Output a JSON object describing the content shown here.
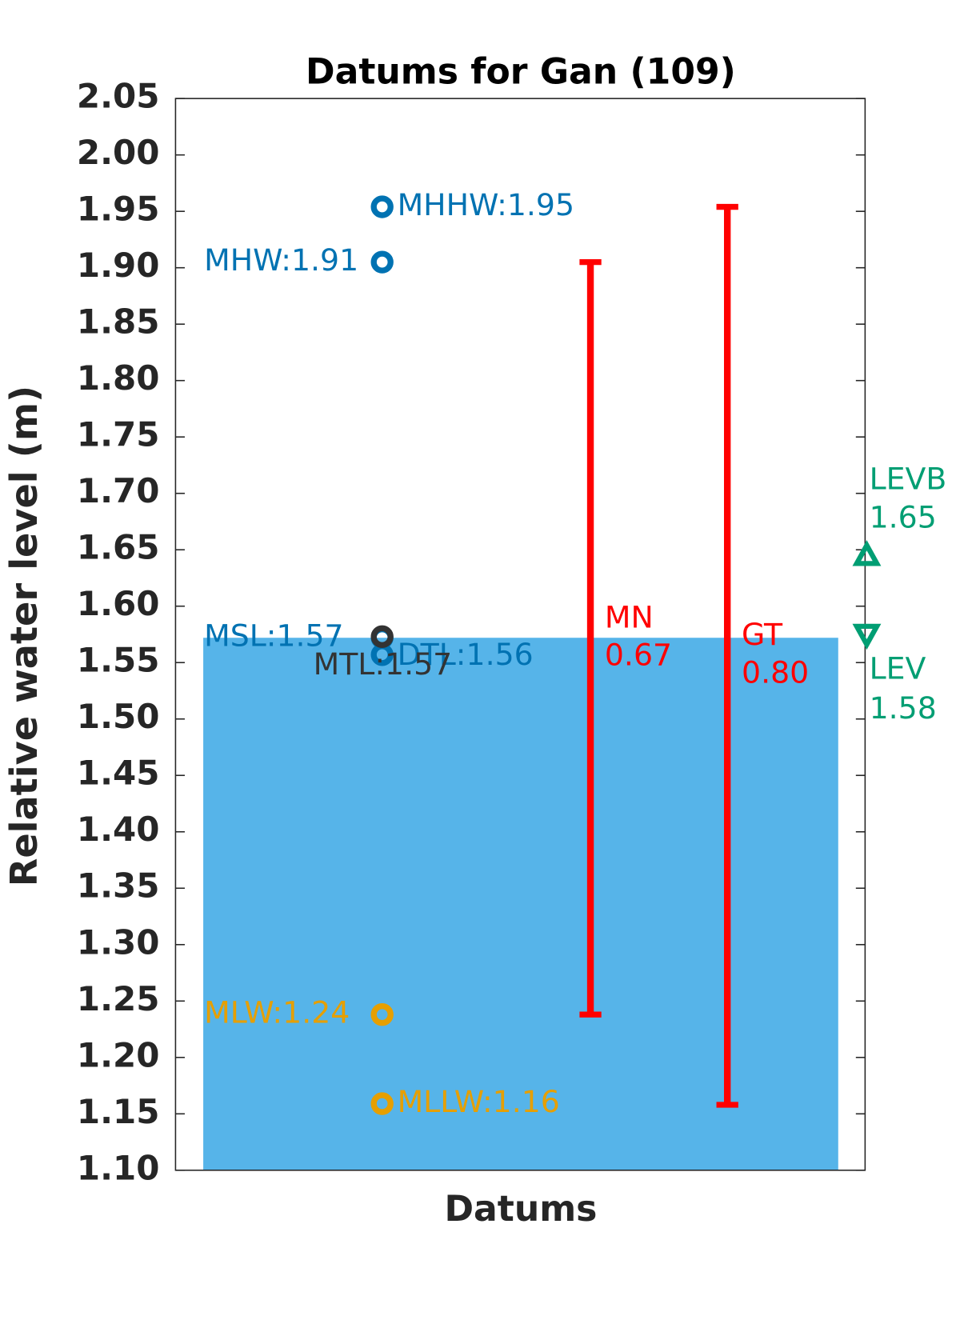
{
  "chart_data": {
    "type": "datums",
    "title": "Datums for Gan (109)",
    "y_label": "Relative water level (m)",
    "x_label": "Datums",
    "ylim": [
      1.1,
      2.05
    ],
    "yticks": [
      {
        "value": 1.1,
        "label": "1.10"
      },
      1.15,
      {
        "value": 1.2,
        "label": "1.20"
      },
      1.25,
      {
        "value": 1.3,
        "label": "1.30"
      },
      1.35,
      {
        "value": 1.4,
        "label": "1.40"
      },
      1.45,
      {
        "value": 1.5,
        "label": "1.50"
      },
      1.55,
      {
        "value": 1.6,
        "label": "1.60"
      },
      1.65,
      {
        "value": 1.7,
        "label": "1.70"
      },
      1.75,
      {
        "value": 1.8,
        "label": "1.80"
      },
      1.85,
      {
        "value": 1.9,
        "label": "1.90"
      },
      1.95,
      {
        "value": 2.0,
        "label": "2.00"
      },
      2.05
    ],
    "bar": {
      "value": 1.572,
      "color": "#56b4e9"
    },
    "points": {
      "values": [
        1.954,
        1.905,
        1.572,
        1.557,
        1.573,
        1.238,
        1.159
      ],
      "value_labels": [
        "MHHW:1.95",
        "MHW:1.91",
        "MSL:1.57",
        "DTL:1.56",
        "MTL:1.57",
        "MLW:1.24",
        "MLLW:1.16"
      ],
      "colors": [
        "#0072b2",
        "#0072b2",
        "#0072b2",
        "#0072b2",
        "#333333",
        "#e69f00",
        "#e69f00"
      ]
    },
    "ranges": [
      {
        "name": "MN",
        "low": 1.238,
        "high": 1.905,
        "value": 0.67
      },
      {
        "name": "GT",
        "low": 1.158,
        "high": 1.954,
        "value": 0.8,
        "value_label": "0.80"
      }
    ],
    "range_color": "#ff0000",
    "levels": [
      {
        "name": "LEVB",
        "value": 1.645,
        "value_label": "1.65",
        "marker": "up"
      },
      {
        "name": "LEV",
        "value": 1.575,
        "value_label": "1.58",
        "marker": "down"
      }
    ],
    "level_color": "#009e73"
  }
}
